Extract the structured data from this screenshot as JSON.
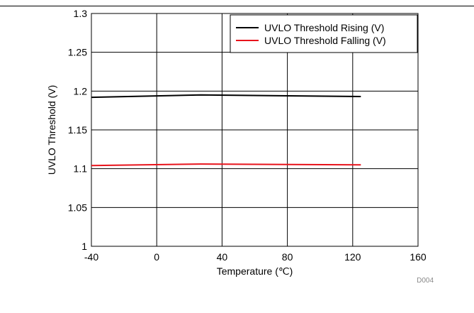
{
  "chart_data": {
    "type": "line",
    "xlabel": "Temperature (℃)",
    "ylabel": "UVLO Threshold (V)",
    "xlim": [
      -40,
      160
    ],
    "ylim": [
      1,
      1.3
    ],
    "x_ticks": [
      "-40",
      "0",
      "40",
      "80",
      "120",
      "160"
    ],
    "y_ticks": [
      "1",
      "1.05",
      "1.1",
      "1.15",
      "1.2",
      "1.25",
      "1.3"
    ],
    "grid": true,
    "legend_position": "top-right",
    "series": [
      {
        "name": "UVLO Threshold Rising (V)",
        "color": "#000000",
        "x": [
          -40,
          27,
          125
        ],
        "y": [
          1.192,
          1.195,
          1.193
        ]
      },
      {
        "name": "UVLO Threshold Falling (V)",
        "color": "#e8141c",
        "x": [
          -40,
          27,
          125
        ],
        "y": [
          1.104,
          1.106,
          1.105
        ]
      }
    ],
    "figure_code": "D004"
  }
}
